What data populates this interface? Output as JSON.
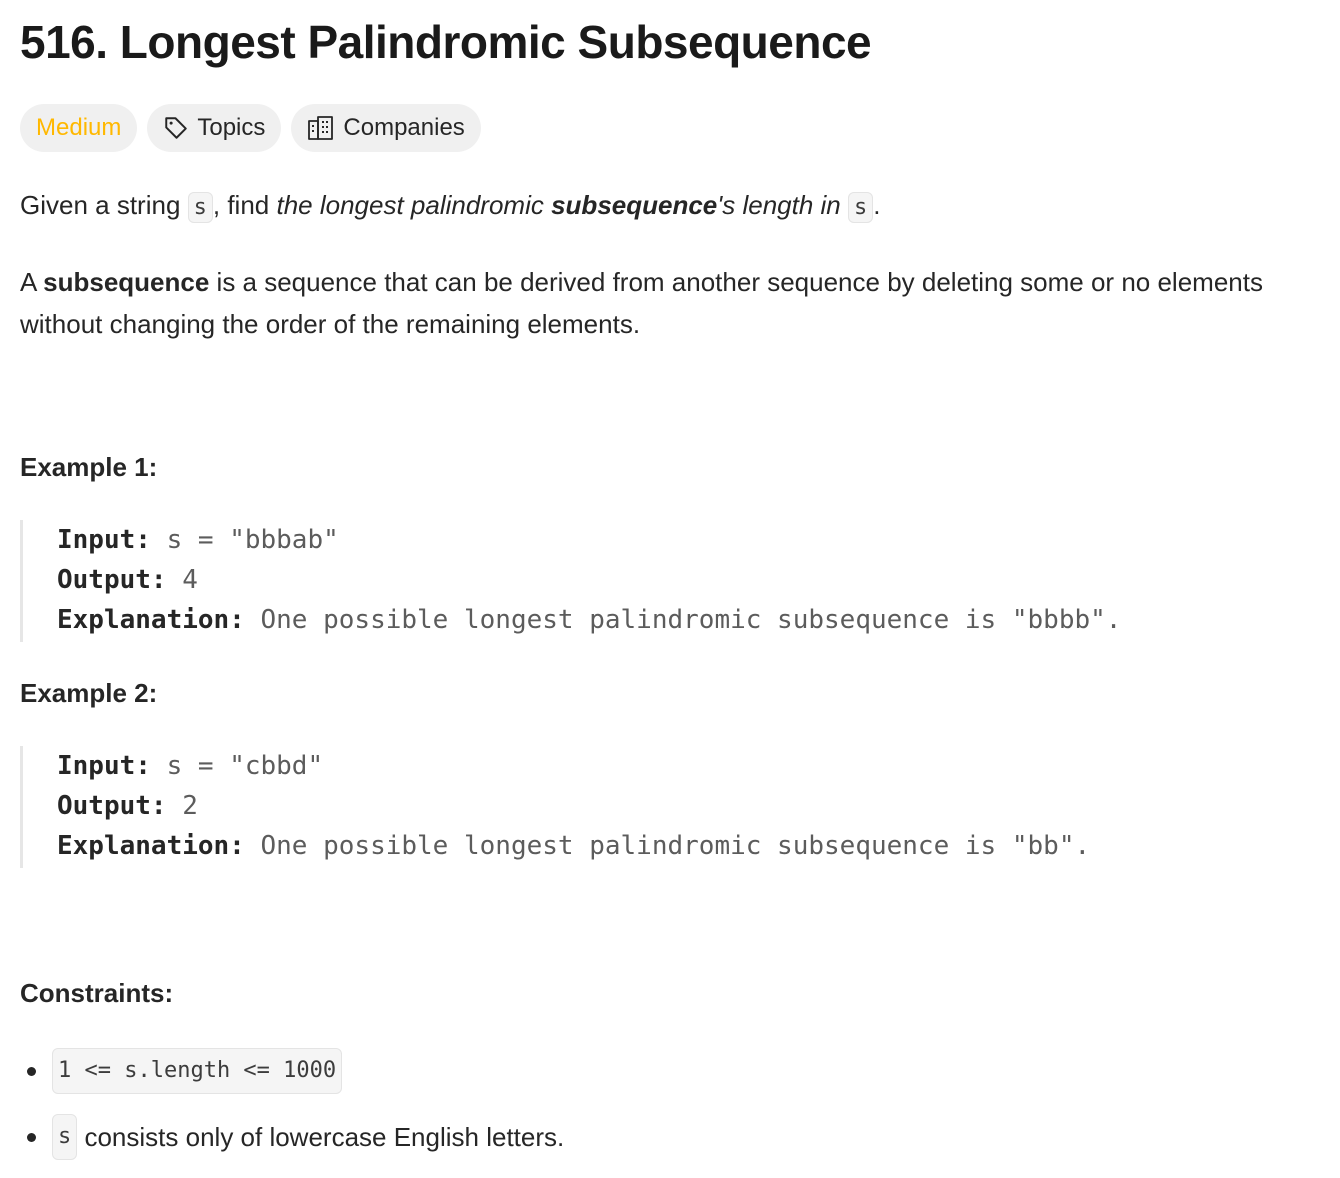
{
  "problem": {
    "number_title": "516. Longest Palindromic Subsequence"
  },
  "tags": {
    "difficulty": "Medium",
    "topics": "Topics",
    "companies": "Companies"
  },
  "icons": {
    "topics": "tag-icon",
    "companies": "building-icon"
  },
  "colors": {
    "difficulty_medium": "#ffb800"
  },
  "description": {
    "p1_given": "Given a string ",
    "p1_var1": "s",
    "p1_find": ", find ",
    "p1_italic": "the longest palindromic ",
    "p1_bold": "subsequence",
    "p1_italic2": "'s length in ",
    "p1_var2": "s",
    "p1_end": ".",
    "p2_a": "A ",
    "p2_bold": "subsequence",
    "p2_rest": " is a sequence that can be derived from another sequence by deleting some or no elements without changing the order of the remaining elements."
  },
  "examples": [
    {
      "title": "Example 1:",
      "input_label": "Input:",
      "input_value": " s = \"bbbab\"",
      "output_label": "Output:",
      "output_value": " 4",
      "explanation_label": "Explanation:",
      "explanation_value": " One possible longest palindromic subsequence is \"bbbb\"."
    },
    {
      "title": "Example 2:",
      "input_label": "Input:",
      "input_value": " s = \"cbbd\"",
      "output_label": "Output:",
      "output_value": " 2",
      "explanation_label": "Explanation:",
      "explanation_value": " One possible longest palindromic subsequence is \"bb\"."
    }
  ],
  "constraints": {
    "title": "Constraints:",
    "c1_code": "1 <= s.length <= 1000",
    "c2_code": "s",
    "c2_text": " consists only of lowercase English letters."
  }
}
